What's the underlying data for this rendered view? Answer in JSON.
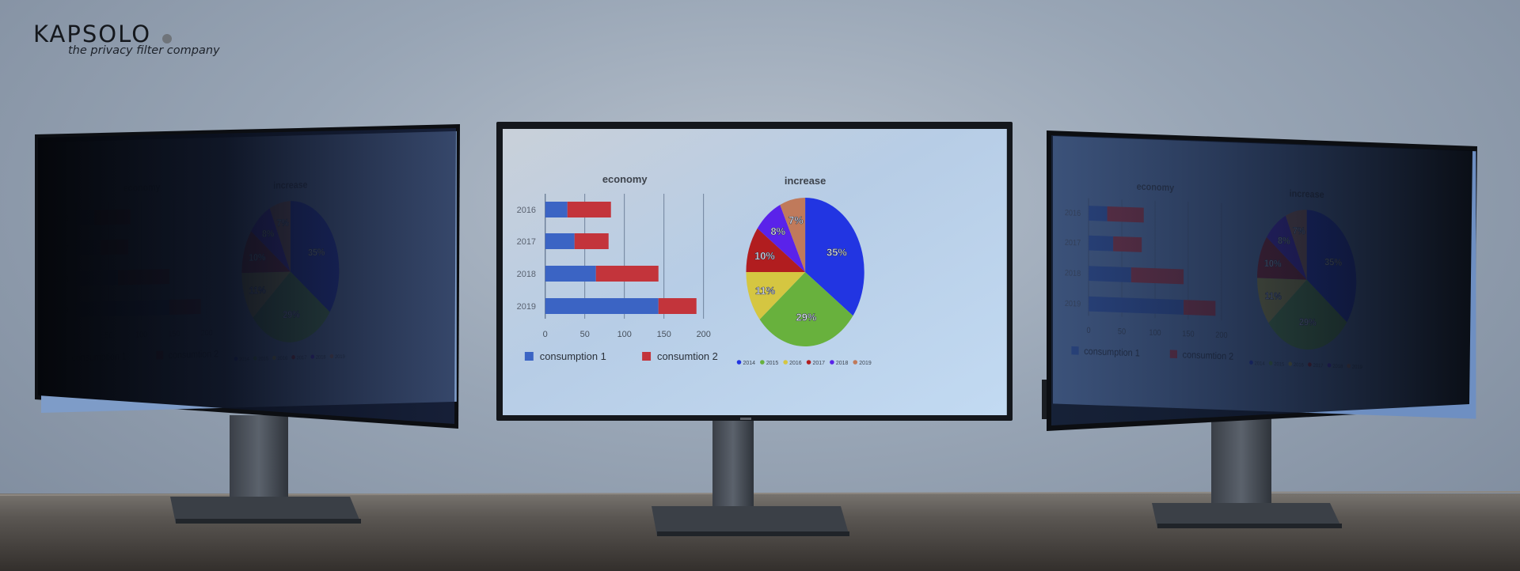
{
  "logo": {
    "brand": "KAPSOLO",
    "tagline": "the privacy filter company"
  },
  "colors": {
    "bar_series_1": "#3b64c4",
    "bar_series_2": "#c3343b",
    "screen_bg": "#bcd3ec"
  },
  "chart_data": [
    {
      "type": "bar",
      "orientation": "horizontal",
      "stacked": true,
      "title": "economy",
      "categories": [
        "2016",
        "2017",
        "2018",
        "2019"
      ],
      "series": [
        {
          "name": "consumption  1",
          "values": [
            28,
            37,
            64,
            143
          ],
          "color": "#3b64c4"
        },
        {
          "name": "consumtion 2",
          "values": [
            55,
            43,
            79,
            48
          ],
          "color": "#c3343b"
        }
      ],
      "xlim": [
        0,
        200
      ],
      "xticks": [
        "0",
        "50",
        "100",
        "150",
        "200"
      ],
      "grid": true,
      "legend": "bottom"
    },
    {
      "type": "pie",
      "title": "increase",
      "slices": [
        {
          "label": "2014",
          "value": 35,
          "text": "35%",
          "color": "#2235e2"
        },
        {
          "label": "2015",
          "value": 29,
          "text": "29%",
          "color": "#68b13d"
        },
        {
          "label": "2016",
          "value": 11,
          "text": "11%",
          "color": "#d5c641"
        },
        {
          "label": "2017",
          "value": 10,
          "text": "10%",
          "color": "#b11d1f"
        },
        {
          "label": "2018",
          "value": 8,
          "text": "8%",
          "color": "#5a22ea"
        },
        {
          "label": "2019",
          "value": 7,
          "text": "7%",
          "color": "#c07a5b"
        }
      ],
      "legend": "bottom"
    }
  ]
}
